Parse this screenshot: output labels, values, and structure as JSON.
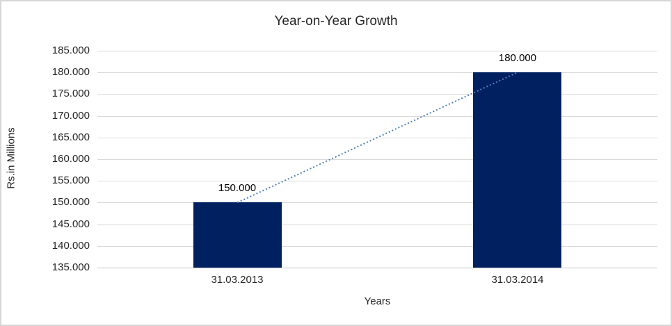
{
  "chart_data": {
    "type": "bar",
    "title": "Year-on-Year Growth",
    "xlabel": "Years",
    "ylabel": "Rs.in Millions",
    "categories": [
      "31.03.2013",
      "31.03.2014"
    ],
    "series": [
      {
        "values": [
          150000,
          180000
        ],
        "value_labels": [
          "150.000",
          "180.000"
        ]
      }
    ],
    "ylim": [
      135000,
      185000
    ],
    "ytick_step": 5000,
    "ytick_labels_top_to_bottom": [
      "185.000",
      "180.000",
      "175.000",
      "170.000",
      "165.000",
      "160.000",
      "155.000",
      "150.000",
      "145.000",
      "140.000",
      "135.000"
    ],
    "grid": "horizontal",
    "legend": "none",
    "trendline": {
      "type": "linear",
      "style": "dotted",
      "connects_values": [
        150000,
        180000
      ]
    },
    "colors": {
      "bar": "#002060",
      "trendline": "#4f81bd",
      "gridline": "#d9d9d9",
      "axis_line": "#c6c6c6",
      "text": "#262626",
      "chart_border": "#d6d6d6",
      "background": "#ffffff"
    }
  }
}
